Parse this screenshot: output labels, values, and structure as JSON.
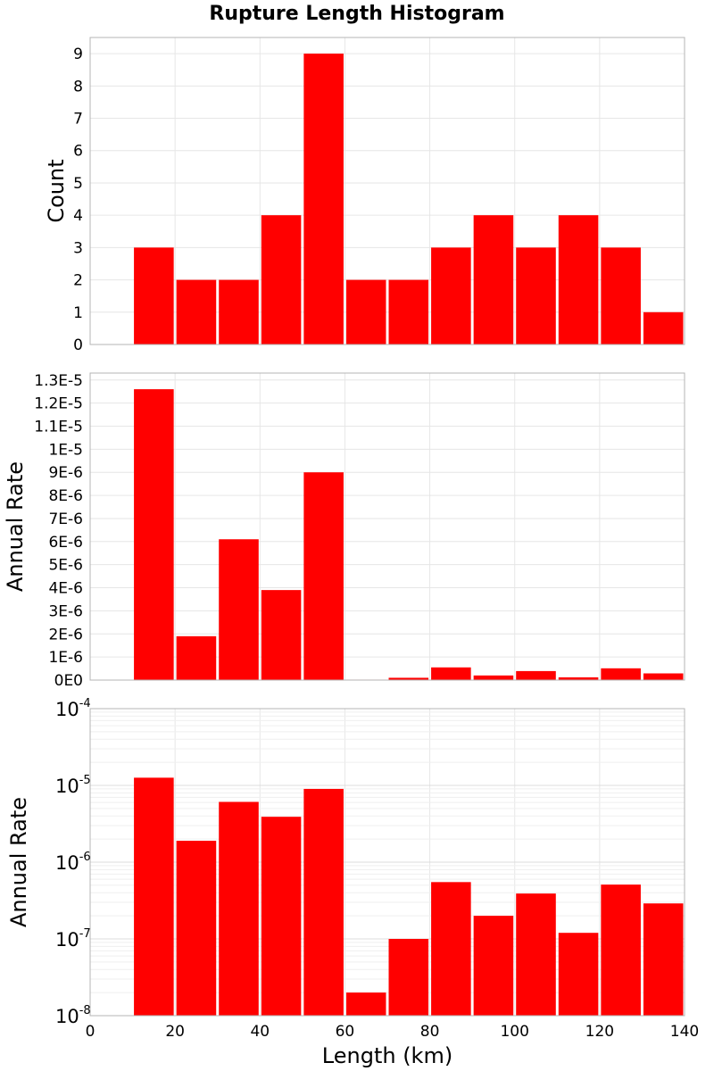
{
  "title": "Rupture Length Histogram",
  "chart_data": [
    {
      "type": "bar",
      "name": "count-panel",
      "ylabel": "Count",
      "yscale": "linear",
      "ylim": [
        0,
        9.5
      ],
      "yticks": [
        0,
        1,
        2,
        3,
        4,
        5,
        6,
        7,
        8,
        9
      ],
      "ytick_labels": [
        "0",
        "1",
        "2",
        "3",
        "4",
        "5",
        "6",
        "7",
        "8",
        "9"
      ],
      "xlim": [
        0,
        140
      ],
      "x": [
        15,
        25,
        35,
        45,
        55,
        65,
        75,
        85,
        95,
        105,
        115,
        125,
        135
      ],
      "values": [
        3,
        2,
        2,
        4,
        9,
        2,
        2,
        3,
        4,
        3,
        4,
        3,
        1
      ],
      "color": "#ff0000"
    },
    {
      "type": "bar",
      "name": "rate-linear-panel",
      "ylabel": "Annual Rate",
      "yscale": "linear",
      "ylim": [
        0,
        1.33e-05
      ],
      "yticks": [
        0,
        1e-06,
        2e-06,
        3e-06,
        4e-06,
        5e-06,
        6e-06,
        7e-06,
        8e-06,
        9e-06,
        1e-05,
        1.1e-05,
        1.2e-05,
        1.3e-05
      ],
      "ytick_labels": [
        "0E0",
        "1E-6",
        "2E-6",
        "3E-6",
        "4E-6",
        "5E-6",
        "6E-6",
        "7E-6",
        "8E-6",
        "9E-6",
        "1E-5",
        "1.1E-5",
        "1.2E-5",
        "1.3E-5"
      ],
      "xlim": [
        0,
        140
      ],
      "x": [
        15,
        25,
        35,
        45,
        55,
        65,
        75,
        85,
        95,
        105,
        115,
        125,
        135
      ],
      "values": [
        1.26e-05,
        1.9e-06,
        6.1e-06,
        3.9e-06,
        9e-06,
        2e-08,
        1e-07,
        5.5e-07,
        2e-07,
        3.9e-07,
        1.2e-07,
        5.1e-07,
        2.9e-07
      ],
      "color": "#ff0000"
    },
    {
      "type": "bar",
      "name": "rate-log-panel",
      "ylabel": "Annual Rate",
      "xlabel": "Length (km)",
      "yscale": "log",
      "ylim": [
        1e-08,
        0.0001
      ],
      "yticks": [
        1e-08,
        1e-07,
        1e-06,
        1e-05,
        0.0001
      ],
      "ytick_bases": [
        "10",
        "10",
        "10",
        "10",
        "10"
      ],
      "ytick_exponents": [
        "-8",
        "-7",
        "-6",
        "-5",
        "-4"
      ],
      "xlim": [
        0,
        140
      ],
      "xticks": [
        0,
        20,
        40,
        60,
        80,
        100,
        120,
        140
      ],
      "xtick_labels": [
        "0",
        "20",
        "40",
        "60",
        "80",
        "100",
        "120",
        "140"
      ],
      "x": [
        15,
        25,
        35,
        45,
        55,
        65,
        75,
        85,
        95,
        105,
        115,
        125,
        135
      ],
      "values": [
        1.26e-05,
        1.9e-06,
        6.1e-06,
        3.9e-06,
        9e-06,
        2e-08,
        1e-07,
        5.5e-07,
        2e-07,
        3.9e-07,
        1.2e-07,
        5.1e-07,
        2.9e-07
      ],
      "color": "#ff0000"
    }
  ]
}
